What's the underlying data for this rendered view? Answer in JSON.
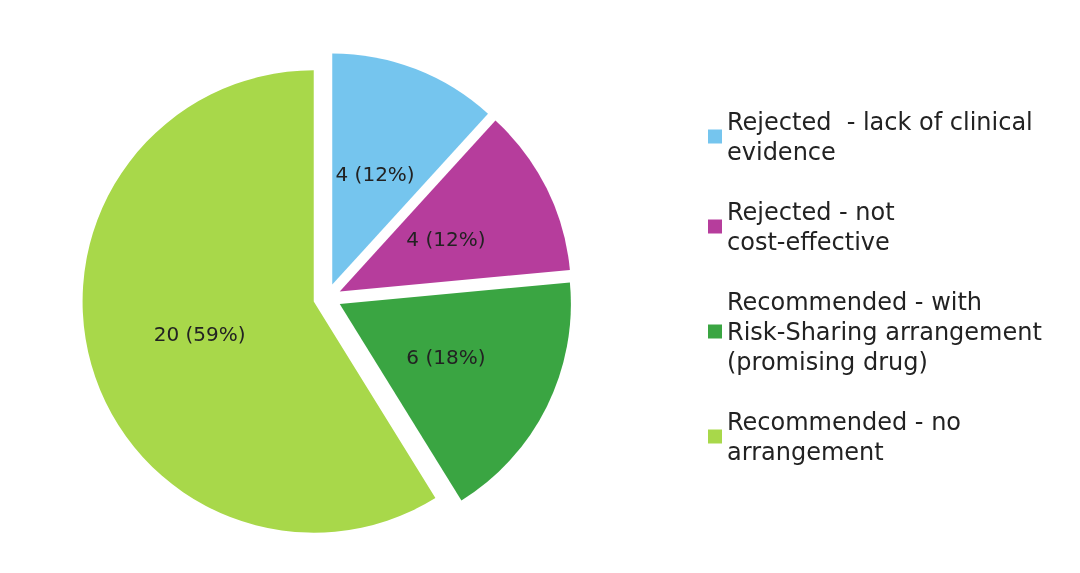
{
  "chart_data": {
    "type": "pie",
    "categories": [
      "Rejected  - lack of clinical evidence",
      "Rejected - not cost-effective",
      "Recommended - with Risk-Sharing arrangement (promising drug)",
      "Recommended - no arrangement"
    ],
    "values": [
      4,
      4,
      6,
      20
    ],
    "colors": [
      "#75c5ee",
      "#b63d9c",
      "#3aa542",
      "#a8d84a"
    ],
    "value_labels": [
      "4 (12%)",
      "4 (12%)",
      "6 (18%)",
      "20 (59%)"
    ],
    "legend": "right"
  }
}
